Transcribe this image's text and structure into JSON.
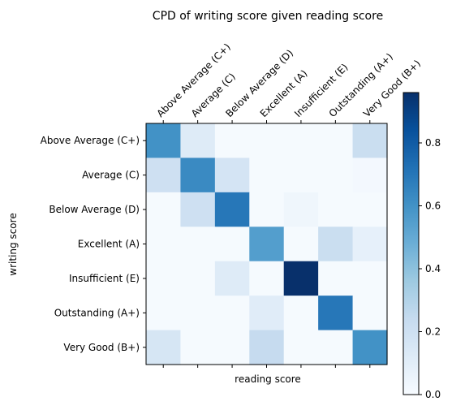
{
  "chart_data": {
    "type": "heatmap",
    "title": "CPD of writing score given reading score",
    "xlabel": "reading score",
    "ylabel": "writing score",
    "x_categories": [
      "Above Average (C+)",
      "Average (C)",
      "Below Average (D)",
      "Excellent (A)",
      "Insufficient (E)",
      "Outstanding (A+)",
      "Very Good (B+)"
    ],
    "y_categories": [
      "Above Average (C+)",
      "Average (C)",
      "Below Average (D)",
      "Excellent (A)",
      "Insufficient (E)",
      "Outstanding (A+)",
      "Very Good (B+)"
    ],
    "values": [
      [
        0.6,
        0.12,
        0.01,
        0.01,
        0.01,
        0.01,
        0.22
      ],
      [
        0.2,
        0.63,
        0.17,
        0.01,
        0.01,
        0.01,
        0.02
      ],
      [
        0.01,
        0.2,
        0.7,
        0.01,
        0.04,
        0.01,
        0.01
      ],
      [
        0.01,
        0.01,
        0.01,
        0.55,
        0.01,
        0.22,
        0.08
      ],
      [
        0.01,
        0.01,
        0.12,
        0.01,
        0.96,
        0.01,
        0.01
      ],
      [
        0.01,
        0.01,
        0.01,
        0.11,
        0.01,
        0.7,
        0.01
      ],
      [
        0.16,
        0.01,
        0.01,
        0.24,
        0.01,
        0.01,
        0.6
      ]
    ],
    "colormap": "Blues",
    "value_range": [
      0,
      0.96
    ],
    "colorbar": {
      "ticks": [
        0.0,
        0.2,
        0.4,
        0.6,
        0.8
      ],
      "tick_labels": [
        "0.0",
        "0.2",
        "0.4",
        "0.6",
        "0.8"
      ],
      "placement": "right"
    },
    "grid": false
  }
}
